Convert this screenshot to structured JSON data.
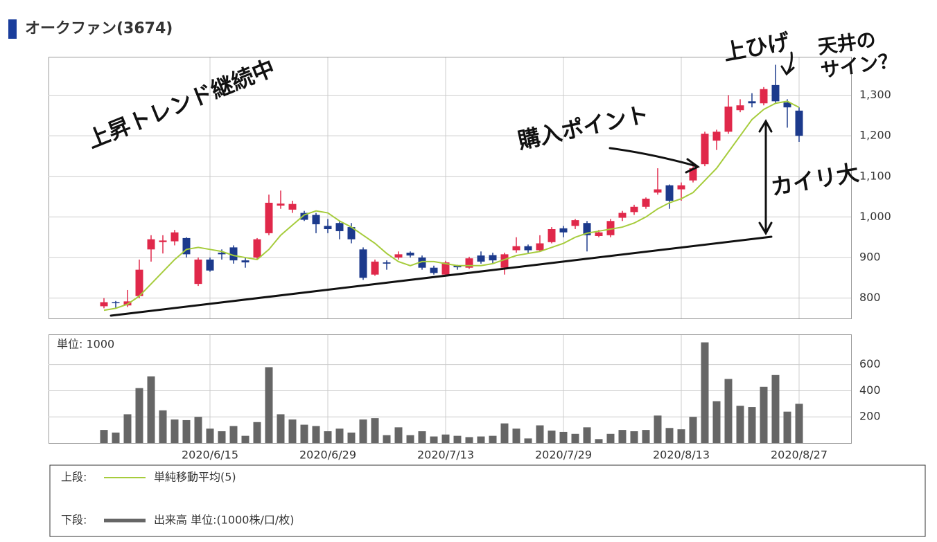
{
  "chart_data": [
    {
      "type": "candlestick",
      "title": "オークファン(3674)",
      "open": [
        780,
        790,
        782,
        805,
        920,
        938,
        940,
        948,
        835,
        895,
        912,
        925,
        893,
        900,
        960,
        1028,
        1018,
        1010,
        1005,
        978,
        985,
        975,
        920,
        858,
        888,
        900,
        912,
        900,
        875,
        858,
        880,
        875,
        905,
        906,
        875,
        918,
        928,
        918,
        938,
        972,
        978,
        985,
        953,
        955,
        998,
        1012,
        1025,
        1060,
        1078,
        1068,
        1090,
        1130,
        1188,
        1210,
        1263,
        1285,
        1280,
        1325,
        1282,
        1262
      ],
      "high": [
        800,
        793,
        820,
        895,
        955,
        955,
        968,
        950,
        900,
        900,
        920,
        930,
        900,
        948,
        1055,
        1065,
        1040,
        1015,
        1010,
        995,
        990,
        985,
        925,
        895,
        893,
        915,
        915,
        905,
        880,
        892,
        882,
        902,
        915,
        912,
        912,
        950,
        932,
        955,
        975,
        978,
        995,
        990,
        968,
        995,
        1015,
        1030,
        1048,
        1120,
        1080,
        1085,
        1125,
        1210,
        1215,
        1300,
        1290,
        1305,
        1320,
        1375,
        1290,
        1270
      ],
      "low": [
        775,
        775,
        778,
        800,
        890,
        910,
        930,
        900,
        830,
        865,
        895,
        885,
        875,
        895,
        955,
        1020,
        1010,
        990,
        960,
        960,
        945,
        935,
        845,
        855,
        870,
        895,
        900,
        870,
        858,
        855,
        870,
        872,
        885,
        885,
        858,
        912,
        912,
        915,
        935,
        950,
        970,
        915,
        950,
        950,
        990,
        1005,
        1020,
        1055,
        1020,
        1040,
        1085,
        1125,
        1165,
        1205,
        1258,
        1270,
        1275,
        1280,
        1220,
        1185
      ],
      "close": [
        790,
        788,
        792,
        870,
        945,
        942,
        962,
        908,
        895,
        868,
        908,
        893,
        888,
        945,
        1035,
        1033,
        1032,
        993,
        982,
        970,
        965,
        945,
        850,
        890,
        885,
        908,
        905,
        875,
        862,
        888,
        876,
        898,
        890,
        893,
        908,
        928,
        918,
        935,
        970,
        962,
        992,
        955,
        962,
        990,
        1010,
        1025,
        1045,
        1068,
        1040,
        1078,
        1120,
        1205,
        1210,
        1272,
        1275,
        1280,
        1315,
        1285,
        1270,
        1200
      ],
      "up_color": "#e0284a",
      "down_color": "#1c3a8c",
      "series": [
        {
          "name": "単純移動平均(5)",
          "color": "#a6cc3c",
          "values": [
            770,
            775,
            785,
            805,
            835,
            865,
            895,
            920,
            925,
            920,
            915,
            905,
            900,
            895,
            920,
            955,
            980,
            1005,
            1015,
            1010,
            990,
            975,
            955,
            935,
            910,
            890,
            880,
            890,
            890,
            885,
            880,
            880,
            880,
            885,
            895,
            905,
            910,
            915,
            925,
            935,
            950,
            960,
            965,
            970,
            975,
            985,
            1000,
            1020,
            1035,
            1045,
            1060,
            1090,
            1120,
            1160,
            1200,
            1240,
            1265,
            1280,
            1285,
            1270
          ]
        }
      ],
      "legend_prefix": "上段:",
      "ylim": [
        750,
        1393
      ],
      "yticks": [
        800,
        900,
        {
          "value": 1000,
          "label": "1,000"
        },
        {
          "value": 1100,
          "label": "1,100"
        },
        {
          "value": 1200,
          "label": "1,200"
        },
        {
          "value": 1300,
          "label": "1,300"
        }
      ],
      "grid": true,
      "annotations": [
        "上昇トレンド継続中",
        "購入ポイント",
        "上ひげ",
        "天井の",
        "サイン？",
        "カイリ大"
      ]
    },
    {
      "type": "bar",
      "unit_label": "単位: 1000",
      "categories": [
        null,
        null,
        null,
        null,
        null,
        null,
        null,
        null,
        null,
        "2020/6/15",
        null,
        null,
        null,
        null,
        null,
        null,
        null,
        null,
        null,
        "2020/6/29",
        null,
        null,
        null,
        null,
        null,
        null,
        null,
        null,
        null,
        "2020/7/13",
        null,
        null,
        null,
        null,
        null,
        null,
        null,
        null,
        null,
        "2020/7/29",
        null,
        null,
        null,
        null,
        null,
        null,
        null,
        null,
        null,
        "2020/8/13",
        null,
        null,
        null,
        null,
        null,
        null,
        null,
        null,
        null,
        "2020/8/27"
      ],
      "series": [
        {
          "name": "出来高 単位:(1000株/口/枚)",
          "color": "#666666",
          "values": [
            100,
            80,
            220,
            420,
            510,
            250,
            180,
            175,
            200,
            110,
            90,
            130,
            55,
            160,
            580,
            220,
            180,
            140,
            130,
            90,
            110,
            80,
            180,
            190,
            60,
            120,
            60,
            90,
            50,
            65,
            55,
            45,
            50,
            55,
            150,
            110,
            35,
            135,
            95,
            85,
            70,
            120,
            30,
            70,
            100,
            90,
            100,
            210,
            115,
            105,
            200,
            770,
            320,
            490,
            285,
            275,
            430,
            520,
            240,
            300
          ]
        }
      ],
      "legend_prefix": "下段:",
      "ylim": [
        0,
        826
      ],
      "yticks": [
        200,
        400,
        600
      ],
      "grid": true
    }
  ]
}
